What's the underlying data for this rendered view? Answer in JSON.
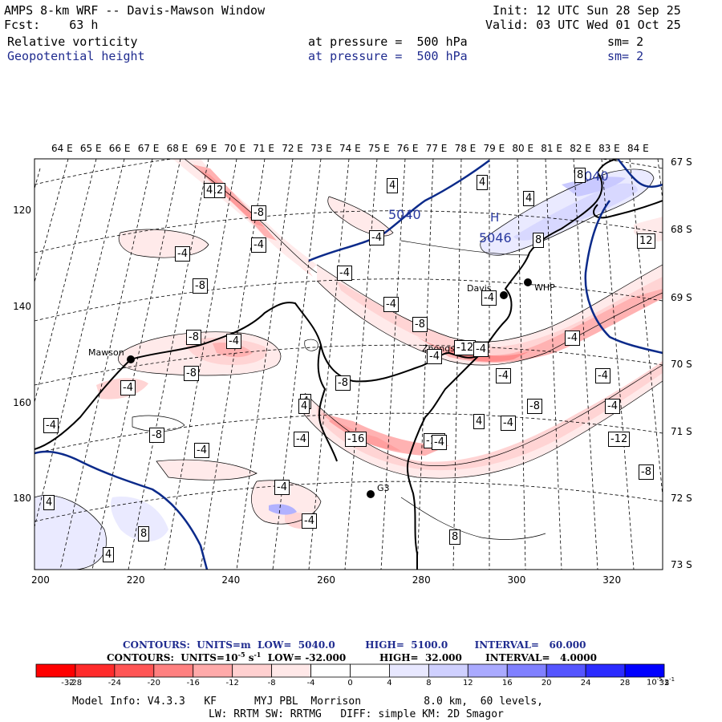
{
  "header": {
    "title": "AMPS 8-km WRF -- Davis-Mawson Window",
    "init": "Init: 12 UTC Sun 28 Sep 25",
    "fcst": "Fcst:    63 h",
    "valid": "Valid: 03 UTC Wed 01 Oct 25",
    "field1": {
      "name": "Relative vorticity",
      "level": "at pressure =  500 hPa",
      "sm": "sm= 2"
    },
    "field2": {
      "name": "Geopotential height",
      "level": "at pressure =  500 hPa",
      "sm": "sm= 2"
    }
  },
  "map": {
    "top_axis_labels": [
      "64 E",
      "65 E",
      "66 E",
      "67 E",
      "68 E",
      "69 E",
      "70 E",
      "71 E",
      "72 E",
      "73 E",
      "74 E",
      "75 E",
      "76 E",
      "77 E",
      "78 E",
      "79 E",
      "80 E",
      "81 E",
      "82 E",
      "83 E",
      "84 E"
    ],
    "right_axis_labels": [
      "67 S",
      "68 S",
      "69 S",
      "70 S",
      "71 S",
      "72 S",
      "73 S"
    ],
    "left_axis_labels": [
      "120",
      "140",
      "160",
      "180"
    ],
    "bottom_axis_labels": [
      "200",
      "220",
      "240",
      "260",
      "280",
      "300",
      "320"
    ],
    "stations": [
      {
        "name": "Davis"
      },
      {
        "name": "WHP"
      },
      {
        "name": "Mawson"
      },
      {
        "name": "Zhongshan"
      },
      {
        "name": "G3"
      }
    ],
    "height_labels": [
      "5040",
      "5046",
      "5040"
    ],
    "high_marker": "H",
    "vorticity_labels": [
      "-12",
      "-8",
      "-4",
      "4",
      "-4",
      "-8",
      "-4",
      "4",
      "4",
      "8",
      "8",
      "12",
      "-4",
      "-4",
      "-8",
      "-12",
      "-4",
      "-8",
      "-4",
      "-8",
      "-4",
      "-8",
      "-12",
      "-4",
      "-4",
      "-8",
      "4",
      "-4",
      "4",
      "-4",
      "-16",
      "-12",
      "-8",
      "-4",
      "-4",
      "-8",
      "-4",
      "-4",
      "4",
      "-4",
      "-4",
      "8",
      "4",
      "8",
      "4",
      "-4",
      "-4",
      "-4",
      "4"
    ]
  },
  "legend": {
    "line1": "CONTOURS:  UNITS=m  LOW=  5040.0         HIGH=  5100.0        INTERVAL=   60.000",
    "line2_a": "CONTOURS:  UNITS=10",
    "line2_exp": "-5",
    "line2_b": " s",
    "line2_exp2": "-1",
    "line2_c": "  LOW= -32.000          HIGH=  32.000       INTERVAL=   4.0000",
    "colorbar_values": [
      "-32",
      "-28",
      "-24",
      "-20",
      "-16",
      "-12",
      "-8",
      "-4",
      "0",
      "4",
      "8",
      "12",
      "16",
      "20",
      "24",
      "28",
      "32"
    ],
    "colorbar_unit": "10",
    "colorbar_unit_exp": "-5",
    "colorbar_unit_s": "s",
    "colorbar_unit_exp2": "-1",
    "colors": [
      "#ff0000",
      "#ff2b2b",
      "#ff5555",
      "#ff8080",
      "#ffaaaa",
      "#ffd0d0",
      "#ffe8e8",
      "#ffffff",
      "#ffffff",
      "#e8e8ff",
      "#cfd0ff",
      "#aaaaff",
      "#8080ff",
      "#5555ff",
      "#2b2bff",
      "#0000ff"
    ],
    "model_info": "Model Info: V4.3.3   KF      MYJ PBL  Morrison          8.0 km,  60 levels,",
    "model_info2": "LW: RRTM SW: RRTMG   DIFF: simple KM: 2D Smagor"
  }
}
